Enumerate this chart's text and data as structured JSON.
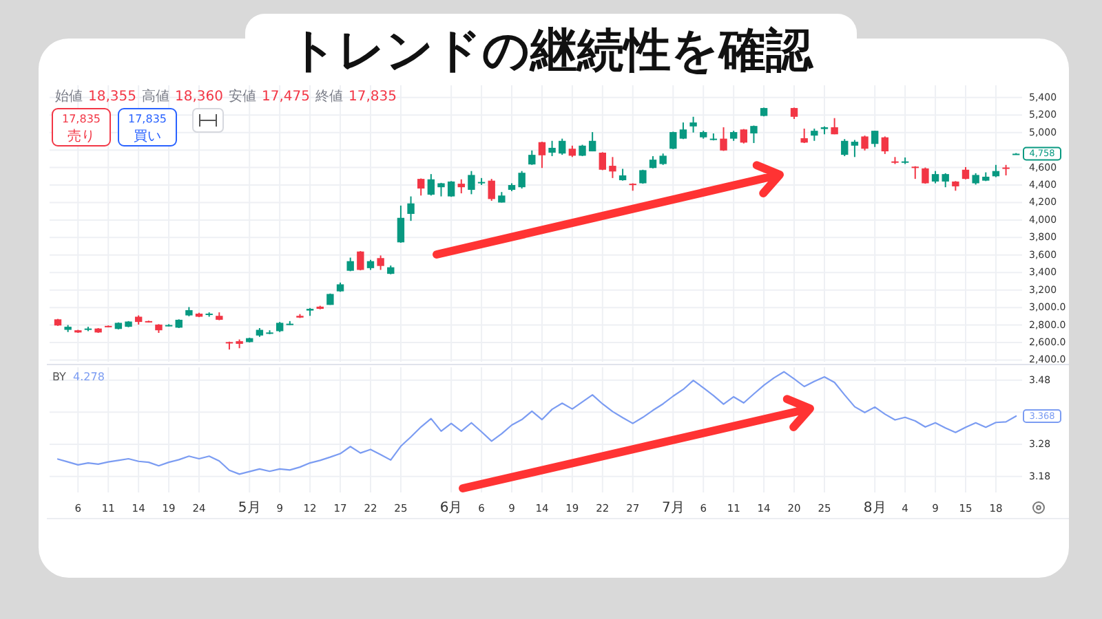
{
  "chart_data": [
    {
      "type": "candlestick",
      "title": "トレンドの継続性を確認",
      "categories": [
        null,
        null,
        null,
        null,
        null,
        null,
        null,
        null,
        null,
        null,
        null,
        null,
        null,
        null,
        null,
        null,
        null,
        null,
        null,
        null,
        null,
        null,
        null,
        null,
        null,
        null,
        null,
        null,
        null,
        null,
        null,
        null,
        null,
        null,
        null,
        null,
        null,
        null,
        null,
        null,
        null,
        null,
        null,
        null,
        null,
        null,
        null,
        null,
        null,
        null,
        null,
        null,
        null,
        null,
        null,
        null,
        null,
        null,
        null,
        null,
        null,
        null,
        null,
        null,
        null,
        null,
        null,
        null,
        null,
        null,
        null,
        null,
        null,
        null,
        null,
        null,
        null,
        null,
        null,
        null,
        null,
        null,
        null,
        null,
        null,
        null,
        null,
        null,
        null,
        null,
        null,
        null,
        null,
        null,
        null,
        null
      ],
      "ohlc": [
        [
          2865,
          2870,
          2790,
          2795
        ],
        [
          2745,
          2800,
          2720,
          2780
        ],
        [
          2740,
          2745,
          2710,
          2715
        ],
        [
          2755,
          2780,
          2730,
          2760
        ],
        [
          2760,
          2765,
          2710,
          2715
        ],
        [
          2790,
          2795,
          2775,
          2780
        ],
        [
          2755,
          2830,
          2750,
          2825
        ],
        [
          2780,
          2845,
          2775,
          2840
        ],
        [
          2895,
          2910,
          2805,
          2835
        ],
        [
          2845,
          2850,
          2830,
          2835
        ],
        [
          2805,
          2810,
          2710,
          2740
        ],
        [
          2790,
          2810,
          2785,
          2800
        ],
        [
          2770,
          2865,
          2765,
          2860
        ],
        [
          2910,
          3005,
          2900,
          2970
        ],
        [
          2930,
          2940,
          2890,
          2895
        ],
        [
          2915,
          2945,
          2895,
          2930
        ],
        [
          2905,
          2945,
          2855,
          2860
        ],
        [
          2605,
          2610,
          2520,
          2590
        ],
        [
          2615,
          2635,
          2535,
          2585
        ],
        [
          2605,
          2655,
          2600,
          2650
        ],
        [
          2680,
          2765,
          2665,
          2745
        ],
        [
          2705,
          2740,
          2695,
          2715
        ],
        [
          2730,
          2835,
          2720,
          2825
        ],
        [
          2805,
          2845,
          2800,
          2815
        ],
        [
          2905,
          2925,
          2880,
          2885
        ],
        [
          2965,
          2995,
          2905,
          2985
        ],
        [
          3010,
          3020,
          2980,
          2985
        ],
        [
          3030,
          3160,
          3030,
          3155
        ],
        [
          3185,
          3285,
          3180,
          3265
        ],
        [
          3420,
          3570,
          3415,
          3530
        ],
        [
          3640,
          3645,
          3425,
          3430
        ],
        [
          3450,
          3545,
          3430,
          3530
        ],
        [
          3565,
          3595,
          3430,
          3475
        ],
        [
          3385,
          3480,
          3380,
          3460
        ],
        [
          3745,
          4165,
          3740,
          4025
        ],
        [
          4070,
          4270,
          3990,
          4190
        ],
        [
          4470,
          4475,
          4280,
          4360
        ],
        [
          4290,
          4525,
          4280,
          4465
        ],
        [
          4375,
          4425,
          4270,
          4420
        ],
        [
          4270,
          4445,
          4265,
          4440
        ],
        [
          4415,
          4465,
          4305,
          4375
        ],
        [
          4345,
          4560,
          4295,
          4515
        ],
        [
          4430,
          4480,
          4400,
          4435
        ],
        [
          4450,
          4470,
          4220,
          4240
        ],
        [
          4200,
          4320,
          4200,
          4280
        ],
        [
          4345,
          4420,
          4330,
          4400
        ],
        [
          4375,
          4560,
          4360,
          4540
        ],
        [
          4635,
          4795,
          4630,
          4745
        ],
        [
          4890,
          4895,
          4595,
          4740
        ],
        [
          4770,
          4905,
          4730,
          4825
        ],
        [
          4760,
          4930,
          4745,
          4905
        ],
        [
          4815,
          4850,
          4720,
          4735
        ],
        [
          4735,
          4860,
          4730,
          4850
        ],
        [
          4785,
          5005,
          4785,
          4905
        ],
        [
          4770,
          4775,
          4570,
          4575
        ],
        [
          4620,
          4720,
          4480,
          4555
        ],
        [
          4455,
          4585,
          4450,
          4510
        ],
        [
          4415,
          4420,
          4335,
          4400
        ],
        [
          4420,
          4575,
          4415,
          4570
        ],
        [
          4595,
          4730,
          4590,
          4690
        ],
        [
          4640,
          4760,
          4630,
          4735
        ],
        [
          4815,
          5010,
          4810,
          5005
        ],
        [
          4930,
          5115,
          4925,
          5035
        ],
        [
          5070,
          5180,
          5000,
          5115
        ],
        [
          4945,
          5020,
          4930,
          5005
        ],
        [
          4925,
          4990,
          4910,
          4930
        ],
        [
          4930,
          5060,
          4790,
          4795
        ],
        [
          4930,
          5020,
          4905,
          5005
        ],
        [
          5035,
          5040,
          4875,
          4885
        ],
        [
          4990,
          5080,
          4880,
          5075
        ],
        [
          5190,
          5285,
          5185,
          5280
        ],
        null,
        null,
        [
          5280,
          5285,
          5155,
          5180
        ],
        [
          4935,
          5045,
          4880,
          4885
        ],
        [
          4965,
          5045,
          4905,
          5020
        ],
        [
          5040,
          5070,
          4980,
          5060
        ],
        [
          5060,
          5165,
          4980,
          4980
        ],
        [
          4745,
          4925,
          4730,
          4905
        ],
        [
          4850,
          4915,
          4720,
          4895
        ],
        [
          4955,
          4965,
          4795,
          4815
        ],
        [
          4870,
          5020,
          4835,
          5020
        ],
        [
          4945,
          4955,
          4755,
          4785
        ],
        [
          4670,
          4720,
          4640,
          4660
        ],
        [
          4660,
          4715,
          4640,
          4670
        ],
        [
          4610,
          4615,
          4470,
          4600
        ],
        [
          4590,
          4600,
          4415,
          4420
        ],
        [
          4440,
          4560,
          4420,
          4525
        ],
        [
          4440,
          4535,
          4375,
          4525
        ],
        [
          4440,
          4445,
          4335,
          4385
        ],
        [
          4575,
          4605,
          4465,
          4470
        ],
        [
          4420,
          4535,
          4405,
          4515
        ],
        [
          4450,
          4545,
          4445,
          4495
        ],
        [
          4500,
          4630,
          4490,
          4560
        ],
        [
          4600,
          4630,
          4510,
          4595
        ],
        [
          4755,
          4765,
          4750,
          4758
        ]
      ],
      "colors": [
        "#f23645",
        "#089981",
        "#f23645",
        "#089981",
        "#f23645",
        "#f23645",
        "#089981",
        "#089981",
        "#f23645",
        "#f23645",
        "#f23645",
        "#089981",
        "#089981",
        "#089981",
        "#f23645",
        "#089981",
        "#f23645",
        "#f23645",
        "#f23645",
        "#089981",
        "#089981",
        "#089981",
        "#089981",
        "#089981",
        "#f23645",
        "#089981",
        "#f23645",
        "#089981",
        "#089981",
        "#089981",
        "#f23645",
        "#089981",
        "#f23645",
        "#089981",
        "#089981",
        "#089981",
        "#f23645",
        "#089981",
        "#089981",
        "#089981",
        "#f23645",
        "#089981",
        "#089981",
        "#f23645",
        "#089981",
        "#089981",
        "#089981",
        "#089981",
        "#f23645",
        "#089981",
        "#089981",
        "#f23645",
        "#089981",
        "#089981",
        "#f23645",
        "#f23645",
        "#089981",
        "#f23645",
        "#089981",
        "#089981",
        "#089981",
        "#089981",
        "#089981",
        "#089981",
        "#089981",
        "#089981",
        "#f23645",
        "#089981",
        "#f23645",
        "#089981",
        "#089981",
        null,
        null,
        "#f23645",
        "#f23645",
        "#089981",
        "#089981",
        "#f23645",
        "#089981",
        "#089981",
        "#f23645",
        "#089981",
        "#f23645",
        "#f23645",
        "#089981",
        "#f23645",
        "#f23645",
        "#089981",
        "#089981",
        "#f23645",
        "#f23645",
        "#089981",
        "#089981",
        "#089981",
        "#f23645",
        "#089981"
      ],
      "ylim": [
        2380,
        5540
      ],
      "yticks": [
        {
          "value": 2400,
          "label": "2,400.0"
        },
        {
          "value": 2600,
          "label": "2,600.0"
        },
        {
          "value": 2800,
          "label": "2,800.0"
        },
        {
          "value": 3000,
          "label": "3,000.0"
        },
        {
          "value": 3200,
          "label": "3,200"
        },
        {
          "value": 3400,
          "label": "3,400"
        },
        {
          "value": 3600,
          "label": "3,600"
        },
        {
          "value": 3800,
          "label": "3,800"
        },
        {
          "value": 4000,
          "label": "4,000"
        },
        {
          "value": 4200,
          "label": "4,200"
        },
        {
          "value": 4400,
          "label": "4,400"
        },
        {
          "value": 4600,
          "label": "4,600"
        },
        {
          "value": 4800,
          "label": null
        },
        {
          "value": 5000,
          "label": "5,000"
        },
        {
          "value": 5200,
          "label": "5,200"
        },
        {
          "value": 5400,
          "label": "5,400"
        }
      ],
      "grid": true,
      "annotations": [
        "始値 18,355 高値 18,360 安値 17,475 終値 17,835",
        "17,835 売り",
        "17,835 買い",
        {
          "text": "4,758",
          "y": 4758
        }
      ]
    },
    {
      "type": "line",
      "categories": [
        null,
        null,
        "6",
        null,
        null,
        "11",
        null,
        null,
        "14",
        null,
        null,
        "19",
        null,
        null,
        "24",
        null,
        null,
        null,
        null,
        "5月",
        null,
        null,
        "9",
        null,
        null,
        "12",
        null,
        null,
        "17",
        null,
        null,
        "22",
        null,
        null,
        "25",
        null,
        null,
        null,
        null,
        "6月",
        null,
        null,
        "6",
        null,
        null,
        "9",
        null,
        null,
        "14",
        null,
        null,
        "19",
        null,
        null,
        "22",
        null,
        null,
        "27",
        null,
        null,
        null,
        "7月",
        null,
        null,
        "6",
        null,
        null,
        "11",
        null,
        null,
        "14",
        null,
        null,
        "20",
        null,
        null,
        "25",
        null,
        null,
        null,
        null,
        "8月",
        null,
        null,
        "4",
        null,
        null,
        "9",
        null,
        null,
        "15",
        null,
        null,
        "18",
        null,
        null
      ],
      "series": [
        {
          "name": "BY",
          "color": "#7b9cf2",
          "values": [
            3.234,
            3.225,
            3.216,
            3.222,
            3.218,
            3.225,
            3.23,
            3.235,
            3.227,
            3.224,
            3.213,
            3.224,
            3.232,
            3.243,
            3.235,
            3.243,
            3.228,
            3.199,
            3.187,
            3.195,
            3.203,
            3.196,
            3.203,
            3.2,
            3.209,
            3.222,
            3.23,
            3.24,
            3.251,
            3.273,
            3.253,
            3.264,
            3.248,
            3.231,
            3.274,
            3.303,
            3.334,
            3.36,
            3.321,
            3.345,
            3.321,
            3.347,
            3.319,
            3.29,
            3.313,
            3.34,
            3.357,
            3.383,
            3.357,
            3.389,
            3.408,
            3.39,
            3.412,
            3.434,
            3.406,
            3.382,
            3.363,
            3.345,
            3.364,
            3.386,
            3.406,
            3.43,
            3.451,
            3.479,
            3.456,
            3.432,
            3.405,
            3.428,
            3.409,
            3.437,
            3.464,
            3.487,
            3.506,
            3.484,
            3.46,
            3.476,
            3.49,
            3.473,
            3.434,
            3.397,
            3.379,
            3.396,
            3.374,
            3.356,
            3.364,
            3.353,
            3.334,
            3.347,
            3.331,
            3.317,
            3.333,
            3.347,
            3.333,
            3.348,
            3.35,
            3.368
          ]
        }
      ],
      "ylim": [
        3.13,
        3.52
      ],
      "yticks": [
        3.18,
        3.28,
        {
          "value": 3.38,
          "label": null
        },
        3.48
      ],
      "grid": true,
      "legend": "top left",
      "annotations": [
        "4.278",
        {
          "text": "3.368",
          "y": 3.368
        }
      ]
    }
  ]
}
